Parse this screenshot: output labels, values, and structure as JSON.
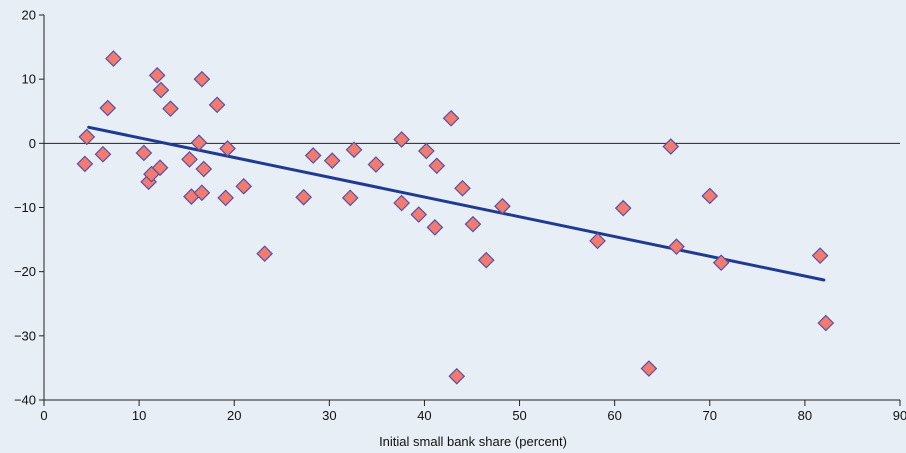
{
  "chart_data": {
    "type": "scatter",
    "xlabel": "Initial small bank share (percent)",
    "ylabel": "",
    "xlim": [
      0,
      90
    ],
    "ylim": [
      -40,
      20
    ],
    "xticks": [
      0,
      10,
      20,
      30,
      40,
      50,
      60,
      70,
      80,
      90
    ],
    "yticks": [
      20,
      10,
      0,
      -10,
      -20,
      -30,
      -40
    ],
    "xtick_labels": [
      "0",
      "10",
      "20",
      "30",
      "40",
      "50",
      "60",
      "70",
      "80",
      "90"
    ],
    "ytick_labels": [
      "20",
      "10",
      "0",
      "−10",
      "−20",
      "−30",
      "−40"
    ],
    "grid": false,
    "zero_line": true,
    "marker": "diamond",
    "colors": {
      "background": "#e7eef5",
      "marker_fill": "#f07b6e",
      "marker_edge": "#5b4ea4",
      "trend": "#1f3a93",
      "axis": "#222222"
    },
    "points": [
      {
        "x": 4.5,
        "y": 1.0
      },
      {
        "x": 4.3,
        "y": -3.2
      },
      {
        "x": 6.2,
        "y": -1.7
      },
      {
        "x": 6.7,
        "y": 5.5
      },
      {
        "x": 7.3,
        "y": 13.2
      },
      {
        "x": 10.5,
        "y": -1.5
      },
      {
        "x": 11.0,
        "y": -6.0
      },
      {
        "x": 11.3,
        "y": -4.8
      },
      {
        "x": 11.9,
        "y": 10.6
      },
      {
        "x": 12.2,
        "y": -3.8
      },
      {
        "x": 12.3,
        "y": 8.3
      },
      {
        "x": 13.3,
        "y": 5.4
      },
      {
        "x": 15.3,
        "y": -2.5
      },
      {
        "x": 15.5,
        "y": -8.3
      },
      {
        "x": 16.3,
        "y": 0.1
      },
      {
        "x": 16.6,
        "y": -7.7
      },
      {
        "x": 16.6,
        "y": 10.0
      },
      {
        "x": 16.8,
        "y": -4.0
      },
      {
        "x": 18.2,
        "y": 6.0
      },
      {
        "x": 19.1,
        "y": -8.5
      },
      {
        "x": 19.3,
        "y": -0.8
      },
      {
        "x": 21.0,
        "y": -6.7
      },
      {
        "x": 23.2,
        "y": -17.2
      },
      {
        "x": 27.3,
        "y": -8.4
      },
      {
        "x": 28.3,
        "y": -1.9
      },
      {
        "x": 30.3,
        "y": -2.7
      },
      {
        "x": 32.2,
        "y": -8.5
      },
      {
        "x": 32.6,
        "y": -1.0
      },
      {
        "x": 34.9,
        "y": -3.3
      },
      {
        "x": 37.6,
        "y": 0.6
      },
      {
        "x": 37.6,
        "y": -9.3
      },
      {
        "x": 39.4,
        "y": -11.1
      },
      {
        "x": 40.2,
        "y": -1.2
      },
      {
        "x": 41.1,
        "y": -13.1
      },
      {
        "x": 41.3,
        "y": -3.5
      },
      {
        "x": 42.8,
        "y": 3.9
      },
      {
        "x": 43.4,
        "y": -36.3
      },
      {
        "x": 44.0,
        "y": -7.0
      },
      {
        "x": 45.1,
        "y": -12.6
      },
      {
        "x": 46.5,
        "y": -18.2
      },
      {
        "x": 48.2,
        "y": -9.8
      },
      {
        "x": 58.2,
        "y": -15.2
      },
      {
        "x": 60.9,
        "y": -10.1
      },
      {
        "x": 63.6,
        "y": -35.1
      },
      {
        "x": 65.9,
        "y": -0.5
      },
      {
        "x": 66.5,
        "y": -16.1
      },
      {
        "x": 70.0,
        "y": -8.2
      },
      {
        "x": 71.2,
        "y": -18.6
      },
      {
        "x": 81.6,
        "y": -17.5
      },
      {
        "x": 82.2,
        "y": -28.0
      }
    ],
    "trend_line": {
      "x": [
        4.7,
        82.0
      ],
      "y": [
        2.5,
        -21.3
      ]
    }
  }
}
